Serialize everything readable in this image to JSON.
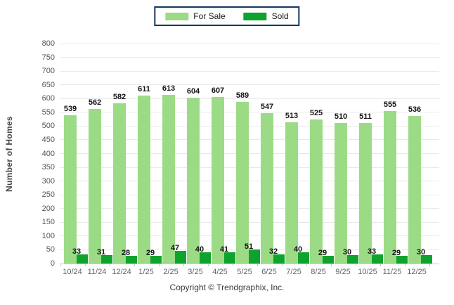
{
  "chart_data": {
    "type": "bar",
    "categories": [
      "10/24",
      "11/24",
      "12/24",
      "1/25",
      "2/25",
      "3/25",
      "4/25",
      "5/25",
      "6/25",
      "7/25",
      "8/25",
      "9/25",
      "10/25",
      "11/25",
      "12/25"
    ],
    "series": [
      {
        "name": "For Sale",
        "color": "#9CDB85",
        "values": [
          539,
          562,
          582,
          611,
          613,
          604,
          607,
          589,
          547,
          513,
          525,
          510,
          511,
          555,
          536
        ]
      },
      {
        "name": "Sold",
        "color": "#0EA32C",
        "values": [
          33,
          31,
          28,
          29,
          47,
          40,
          41,
          51,
          32,
          40,
          29,
          30,
          33,
          29,
          30
        ]
      }
    ],
    "xlabel": "",
    "ylabel": "Number of Homes",
    "ylim": [
      0,
      800
    ],
    "ytick_step": 50,
    "grid": true,
    "legend_position": "top-center",
    "value_labels": true
  },
  "legend": {
    "border_color": "#17375e"
  },
  "footer": {
    "copyright": "Copyright © Trendgraphix, Inc."
  }
}
